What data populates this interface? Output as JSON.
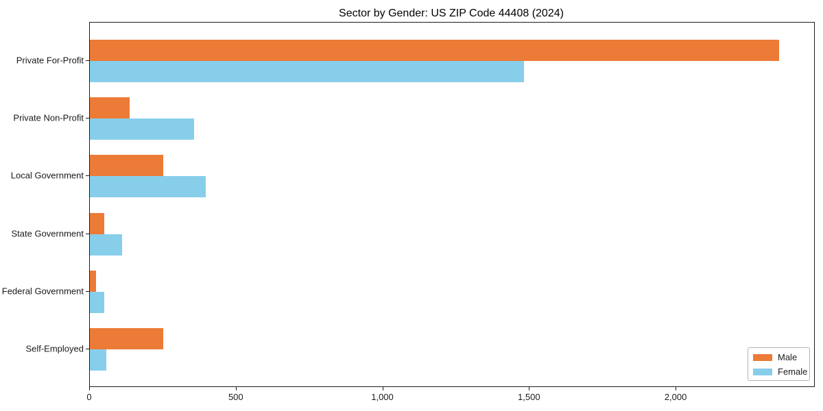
{
  "title": "Sector by Gender: US ZIP Code 44408 (2024)",
  "chart_data": {
    "type": "bar",
    "orientation": "horizontal",
    "title": "Sector by Gender: US ZIP Code 44408 (2024)",
    "xlabel": "",
    "ylabel": "",
    "categories": [
      "Private For-Profit",
      "Private Non-Profit",
      "Local Government",
      "State Government",
      "Federal Government",
      "Self-Employed"
    ],
    "series": [
      {
        "name": "Male",
        "color": "#EC7B37",
        "values": [
          2350,
          135,
          250,
          50,
          20,
          250
        ]
      },
      {
        "name": "Female",
        "color": "#87CEEB",
        "values": [
          1480,
          355,
          395,
          110,
          50,
          55
        ]
      }
    ],
    "xlim": [
      0,
      2470
    ],
    "xticks": [
      0,
      500,
      1000,
      1500,
      2000
    ],
    "xtick_labels": [
      "0",
      "500",
      "1,000",
      "1,500",
      "2,000"
    ],
    "grid": false,
    "legend_position": "lower-right"
  },
  "legend": {
    "items": [
      {
        "label": "Male",
        "color": "#EC7B37"
      },
      {
        "label": "Female",
        "color": "#87CEEB"
      }
    ]
  }
}
